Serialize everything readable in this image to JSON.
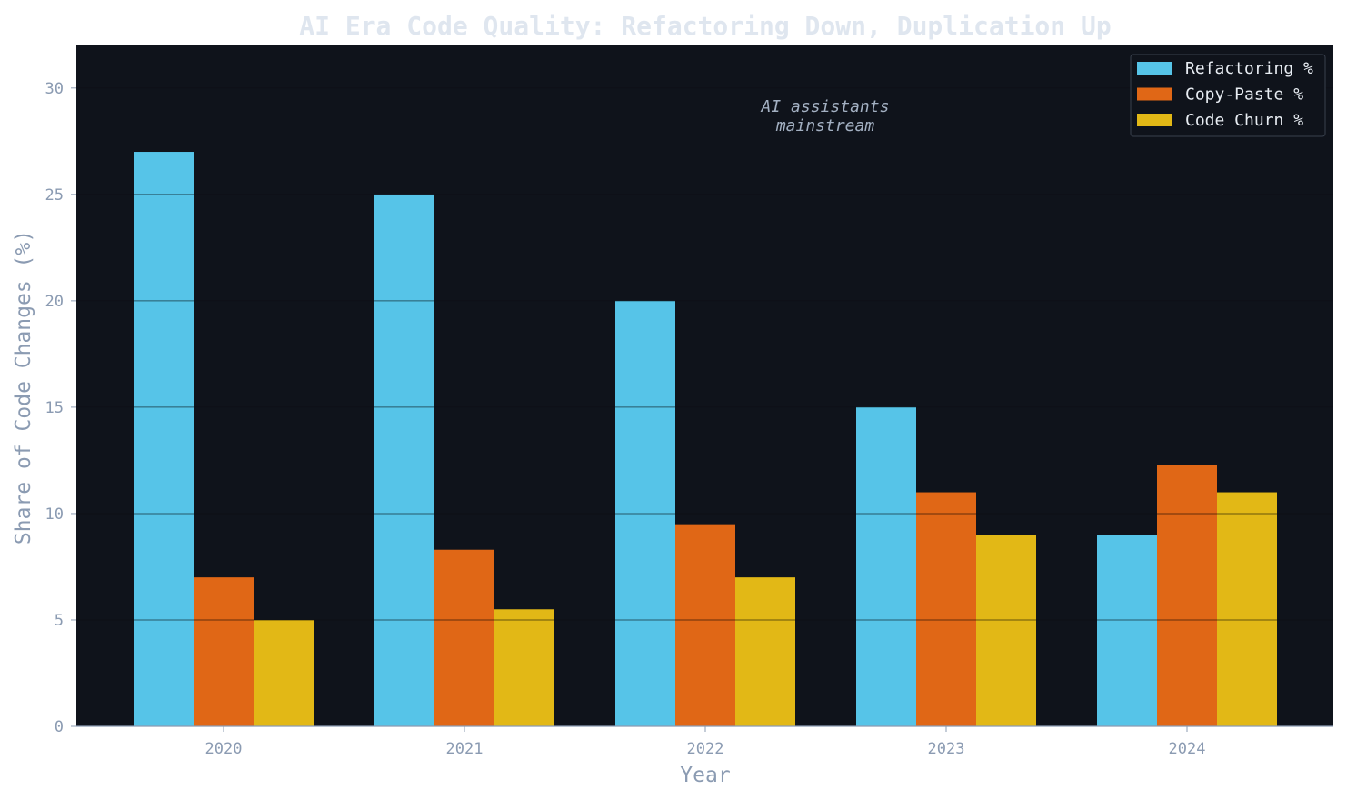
{
  "chart_data": {
    "type": "bar",
    "title": "AI Era Code Quality: Refactoring Down, Duplication Up",
    "xlabel": "Year",
    "ylabel": "Share of Code Changes (%)",
    "categories": [
      "2020",
      "2021",
      "2022",
      "2023",
      "2024"
    ],
    "series": [
      {
        "name": "Refactoring %",
        "values": [
          27,
          25,
          20,
          15,
          9
        ]
      },
      {
        "name": "Copy-Paste %",
        "values": [
          7,
          8.3,
          9.5,
          11,
          12.3
        ]
      },
      {
        "name": "Code Churn %",
        "values": [
          5,
          5.5,
          7,
          9,
          11
        ]
      }
    ],
    "ylim": [
      0,
      32
    ],
    "yticks": [
      "0",
      "5",
      "10",
      "15",
      "20",
      "25",
      "30"
    ],
    "grid": true,
    "legend_position": "top-right",
    "annotation": {
      "lines": [
        "AI assistants",
        "mainstream"
      ],
      "x_between": [
        "2022",
        "2023"
      ]
    },
    "colors": {
      "series": [
        "#56c4e8",
        "#e06716",
        "#e2b816"
      ],
      "background": "#0f131b",
      "text": "#8b9bb2",
      "title": "#dfe6ef",
      "annotation": "#a3b0c2"
    }
  }
}
